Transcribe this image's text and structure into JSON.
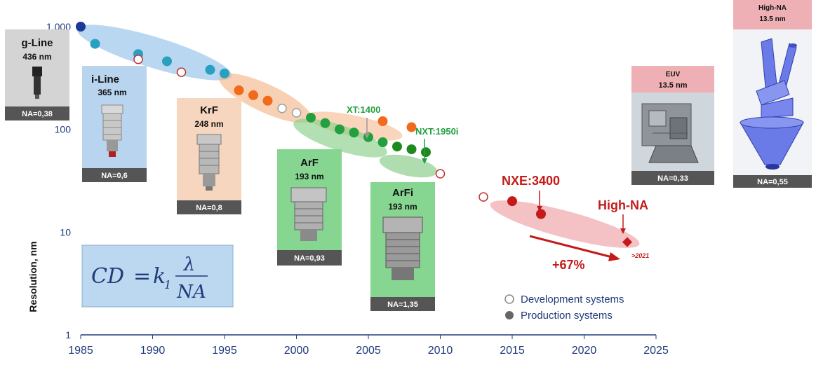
{
  "chart_data": {
    "type": "scatter",
    "title": "",
    "xlabel": "",
    "ylabel": "Resolution, nm",
    "xlim": [
      1985,
      2025
    ],
    "ylim": [
      1,
      1000
    ],
    "yscale": "log",
    "x_ticks": [
      "1985",
      "1990",
      "1995",
      "2000",
      "2005",
      "2010",
      "2015",
      "2020",
      "2025"
    ],
    "y_ticks": [
      "1,000",
      "100",
      "10",
      "1"
    ],
    "legend": {
      "position": "bottom-right",
      "entries": [
        {
          "name": "Development systems",
          "marker": "open-circle"
        },
        {
          "name": "Production systems",
          "marker": "filled-circle"
        }
      ]
    },
    "series": [
      {
        "name": "g-Line",
        "color": "#1a3a9a",
        "production": [
          [
            1985,
            1000
          ]
        ],
        "development": []
      },
      {
        "name": "i-Line",
        "color": "#2aa0c0",
        "production": [
          [
            1986,
            680
          ],
          [
            1989,
            540
          ],
          [
            1991,
            460
          ],
          [
            1994,
            380
          ],
          [
            1995,
            350
          ]
        ],
        "development": [
          [
            1989,
            480
          ],
          [
            1992,
            360
          ]
        ]
      },
      {
        "name": "KrF",
        "color": "#f26a1b",
        "production": [
          [
            1996,
            240
          ],
          [
            1997,
            215
          ],
          [
            1998,
            190
          ],
          [
            2006,
            120
          ],
          [
            2008,
            105
          ]
        ],
        "development": [
          [
            1999,
            160
          ],
          [
            2000,
            145
          ]
        ]
      },
      {
        "name": "ArF",
        "color": "#22a040",
        "production": [
          [
            2001,
            130
          ],
          [
            2002,
            115
          ],
          [
            2003,
            100
          ],
          [
            2004,
            93
          ],
          [
            2005,
            84
          ],
          [
            2006,
            75
          ]
        ],
        "development": []
      },
      {
        "name": "ArFi",
        "color": "#1e8a1e",
        "production": [
          [
            2007,
            68
          ],
          [
            2008,
            64
          ],
          [
            2009,
            60
          ]
        ],
        "development": [
          [
            2010,
            37
          ]
        ]
      },
      {
        "name": "EUV",
        "color": "#c41a1a",
        "production": [
          [
            2015,
            20
          ],
          [
            2017,
            15
          ],
          [
            2023,
            8
          ]
        ],
        "development": [
          [
            2013,
            22
          ]
        ]
      }
    ],
    "ellipses": [
      {
        "name": "i-Line group",
        "color": "#7fb6e6"
      },
      {
        "name": "KrF group",
        "color": "#f4b383"
      },
      {
        "name": "ArF group",
        "color": "#8bd08b"
      },
      {
        "name": "ArFi group",
        "color": "#79c679"
      },
      {
        "name": "KrF cont.",
        "color": "#f4b383"
      },
      {
        "name": "EUV group",
        "color": "#eb8f94"
      }
    ],
    "annotations": [
      {
        "text": "XT:1400",
        "color": "#22a040",
        "x": 2005,
        "y": 95
      },
      {
        "text": "NXT:1950i",
        "color": "#22a040",
        "x": 2009,
        "y": 60
      },
      {
        "text": "NXE:3400",
        "color": "#c41a1a",
        "x": 2017,
        "y": 15
      },
      {
        "text": "High-NA",
        "color": "#c41a1a",
        "x": 2023,
        "y": 8
      },
      {
        "text": "+67%",
        "color": "#c41a1a",
        "x": 2019,
        "y": 4.5
      },
      {
        "text": ">2021",
        "color": "#c41a1a",
        "x": 2023,
        "y": 5
      }
    ]
  },
  "cards": [
    {
      "id": "gline",
      "title": "g-Line",
      "wavelength": "436 nm",
      "na": "NA=0,38",
      "bg": "#d4d4d4"
    },
    {
      "id": "iline",
      "title": "i-Line",
      "wavelength": "365 nm",
      "na": "NA=0,6",
      "bg": "#b8d4ee"
    },
    {
      "id": "krf",
      "title": "KrF",
      "wavelength": "248 nm",
      "na": "NA=0,8",
      "bg": "#f6d6be"
    },
    {
      "id": "arf",
      "title": "ArF",
      "wavelength": "193 nm",
      "na": "NA=0,93",
      "bg": "#86d692"
    },
    {
      "id": "arfi",
      "title": "ArFi",
      "wavelength": "193 nm",
      "na": "NA=1,35",
      "bg": "#86d692"
    },
    {
      "id": "euv",
      "title": "EUV",
      "wavelength": "13.5 nm",
      "na": "NA=0,33",
      "bg": "#eeb0b4"
    },
    {
      "id": "highna",
      "title": "High-NA",
      "wavelength": "13.5 nm",
      "na": "NA=0,55",
      "bg": "#eeb0b4"
    }
  ],
  "formula": {
    "lhs": "CD",
    "eq": "=",
    "k": "k",
    "k_sub": "1",
    "numerator": "λ",
    "denominator": "NA"
  }
}
